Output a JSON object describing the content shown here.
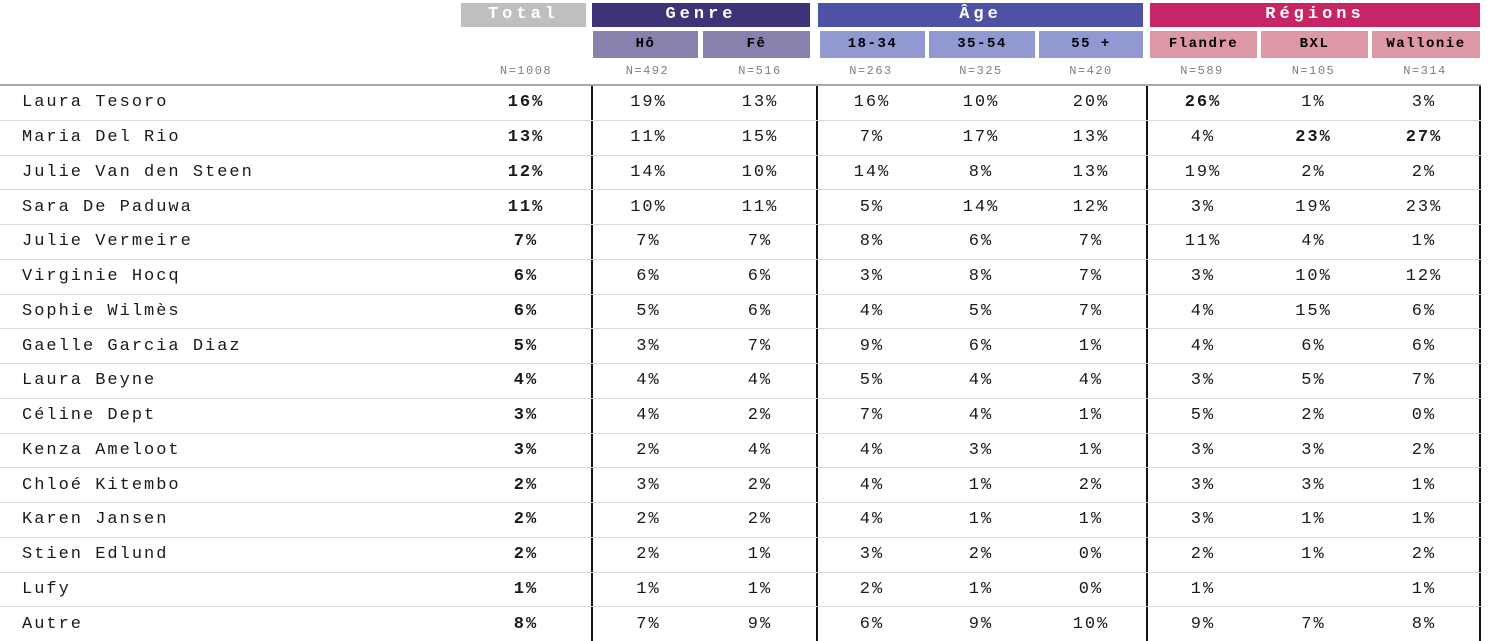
{
  "colors": {
    "total_header_bg": "#bfbfbf",
    "genre_header_bg": "#3f3276",
    "age_header_bg": "#4d52a5",
    "regions_header_bg": "#c72566",
    "genre_sub_bg": "#8781ae",
    "age_sub_bg": "#9298d2",
    "regions_sub_bg": "#dd98a5",
    "header_text": "#ffffff",
    "sub_header_text": "#000000",
    "n_text": "#7f7f7f",
    "row_separator": "#d9d9d9",
    "group_divider": "#111111"
  },
  "header": {
    "total": {
      "label": "Total",
      "n": "N=1008"
    },
    "genre": {
      "label": "Genre",
      "subs": [
        {
          "label": "Hô",
          "n": "N=492"
        },
        {
          "label": "Fê",
          "n": "N=516"
        }
      ]
    },
    "age": {
      "label": "Âge",
      "subs": [
        {
          "label": "18-34",
          "n": "N=263"
        },
        {
          "label": "35-54",
          "n": "N=325"
        },
        {
          "label": "55 +",
          "n": "N=420"
        }
      ]
    },
    "regions": {
      "label": "Régions",
      "subs": [
        {
          "label": "Flandre",
          "n": "N=589"
        },
        {
          "label": "BXL",
          "n": "N=105"
        },
        {
          "label": "Wallonie",
          "n": "N=314"
        }
      ]
    }
  },
  "rows": [
    {
      "name": "Laura Tesoro",
      "values": [
        "16%",
        "19%",
        "13%",
        "16%",
        "10%",
        "20%",
        "26%",
        "1%",
        "3%"
      ],
      "bold": [
        0,
        6
      ]
    },
    {
      "name": "Maria Del Rio",
      "values": [
        "13%",
        "11%",
        "15%",
        "7%",
        "17%",
        "13%",
        "4%",
        "23%",
        "27%"
      ],
      "bold": [
        0,
        7,
        8
      ]
    },
    {
      "name": "Julie Van den Steen",
      "values": [
        "12%",
        "14%",
        "10%",
        "14%",
        "8%",
        "13%",
        "19%",
        "2%",
        "2%"
      ],
      "bold": [
        0
      ]
    },
    {
      "name": "Sara De Paduwa",
      "values": [
        "11%",
        "10%",
        "11%",
        "5%",
        "14%",
        "12%",
        "3%",
        "19%",
        "23%"
      ],
      "bold": [
        0
      ]
    },
    {
      "name": "Julie Vermeire",
      "values": [
        "7%",
        "7%",
        "7%",
        "8%",
        "6%",
        "7%",
        "11%",
        "4%",
        "1%"
      ],
      "bold": [
        0
      ]
    },
    {
      "name": "Virginie Hocq",
      "values": [
        "6%",
        "6%",
        "6%",
        "3%",
        "8%",
        "7%",
        "3%",
        "10%",
        "12%"
      ],
      "bold": [
        0
      ]
    },
    {
      "name": "Sophie Wilmès",
      "values": [
        "6%",
        "5%",
        "6%",
        "4%",
        "5%",
        "7%",
        "4%",
        "15%",
        "6%"
      ],
      "bold": [
        0
      ]
    },
    {
      "name": "Gaelle Garcia Diaz",
      "values": [
        "5%",
        "3%",
        "7%",
        "9%",
        "6%",
        "1%",
        "4%",
        "6%",
        "6%"
      ],
      "bold": [
        0
      ]
    },
    {
      "name": "Laura Beyne",
      "values": [
        "4%",
        "4%",
        "4%",
        "5%",
        "4%",
        "4%",
        "3%",
        "5%",
        "7%"
      ],
      "bold": [
        0
      ]
    },
    {
      "name": "Céline Dept",
      "values": [
        "3%",
        "4%",
        "2%",
        "7%",
        "4%",
        "1%",
        "5%",
        "2%",
        "0%"
      ],
      "bold": [
        0
      ]
    },
    {
      "name": "Kenza Ameloot",
      "values": [
        "3%",
        "2%",
        "4%",
        "4%",
        "3%",
        "1%",
        "3%",
        "3%",
        "2%"
      ],
      "bold": [
        0
      ]
    },
    {
      "name": "Chloé Kitembo",
      "values": [
        "2%",
        "3%",
        "2%",
        "4%",
        "1%",
        "2%",
        "3%",
        "3%",
        "1%"
      ],
      "bold": [
        0
      ]
    },
    {
      "name": "Karen Jansen",
      "values": [
        "2%",
        "2%",
        "2%",
        "4%",
        "1%",
        "1%",
        "3%",
        "1%",
        "1%"
      ],
      "bold": [
        0
      ]
    },
    {
      "name": "Stien Edlund",
      "values": [
        "2%",
        "2%",
        "1%",
        "3%",
        "2%",
        "0%",
        "2%",
        "1%",
        "2%"
      ],
      "bold": [
        0
      ]
    },
    {
      "name": "Lufy",
      "values": [
        "1%",
        "1%",
        "1%",
        "2%",
        "1%",
        "0%",
        "1%",
        "",
        "1%"
      ],
      "bold": [
        0
      ]
    },
    {
      "name": "Autre",
      "values": [
        "8%",
        "7%",
        "9%",
        "6%",
        "9%",
        "10%",
        "9%",
        "7%",
        "8%"
      ],
      "bold": [
        0
      ]
    }
  ],
  "chart_data": {
    "type": "table",
    "title": "",
    "column_groups": [
      {
        "label": "Total",
        "columns": [
          "Total"
        ]
      },
      {
        "label": "Genre",
        "columns": [
          "Hô",
          "Fê"
        ]
      },
      {
        "label": "Âge",
        "columns": [
          "18-34",
          "35-54",
          "55 +"
        ]
      },
      {
        "label": "Régions",
        "columns": [
          "Flandre",
          "BXL",
          "Wallonie"
        ]
      }
    ],
    "columns": [
      "Total",
      "Hô",
      "Fê",
      "18-34",
      "35-54",
      "55 +",
      "Flandre",
      "BXL",
      "Wallonie"
    ],
    "sample_sizes": [
      1008,
      492,
      516,
      263,
      325,
      420,
      589,
      105,
      314
    ],
    "rows": [
      {
        "label": "Laura Tesoro",
        "values_pct": [
          16,
          19,
          13,
          16,
          10,
          20,
          26,
          1,
          3
        ]
      },
      {
        "label": "Maria Del Rio",
        "values_pct": [
          13,
          11,
          15,
          7,
          17,
          13,
          4,
          23,
          27
        ]
      },
      {
        "label": "Julie Van den Steen",
        "values_pct": [
          12,
          14,
          10,
          14,
          8,
          13,
          19,
          2,
          2
        ]
      },
      {
        "label": "Sara De Paduwa",
        "values_pct": [
          11,
          10,
          11,
          5,
          14,
          12,
          3,
          19,
          23
        ]
      },
      {
        "label": "Julie Vermeire",
        "values_pct": [
          7,
          7,
          7,
          8,
          6,
          7,
          11,
          4,
          1
        ]
      },
      {
        "label": "Virginie Hocq",
        "values_pct": [
          6,
          6,
          6,
          3,
          8,
          7,
          3,
          10,
          12
        ]
      },
      {
        "label": "Sophie Wilmès",
        "values_pct": [
          6,
          5,
          6,
          4,
          5,
          7,
          4,
          15,
          6
        ]
      },
      {
        "label": "Gaelle Garcia Diaz",
        "values_pct": [
          5,
          3,
          7,
          9,
          6,
          1,
          4,
          6,
          6
        ]
      },
      {
        "label": "Laura Beyne",
        "values_pct": [
          4,
          4,
          4,
          5,
          4,
          4,
          3,
          5,
          7
        ]
      },
      {
        "label": "Céline Dept",
        "values_pct": [
          3,
          4,
          2,
          7,
          4,
          1,
          5,
          2,
          0
        ]
      },
      {
        "label": "Kenza Ameloot",
        "values_pct": [
          3,
          2,
          4,
          4,
          3,
          1,
          3,
          3,
          2
        ]
      },
      {
        "label": "Chloé Kitembo",
        "values_pct": [
          2,
          3,
          2,
          4,
          1,
          2,
          3,
          3,
          1
        ]
      },
      {
        "label": "Karen Jansen",
        "values_pct": [
          2,
          2,
          2,
          4,
          1,
          1,
          3,
          1,
          1
        ]
      },
      {
        "label": "Stien Edlund",
        "values_pct": [
          2,
          2,
          1,
          3,
          2,
          0,
          2,
          1,
          2
        ]
      },
      {
        "label": "Lufy",
        "values_pct": [
          1,
          1,
          1,
          2,
          1,
          0,
          1,
          null,
          1
        ]
      },
      {
        "label": "Autre",
        "values_pct": [
          8,
          7,
          9,
          6,
          9,
          10,
          9,
          7,
          8
        ]
      }
    ]
  }
}
